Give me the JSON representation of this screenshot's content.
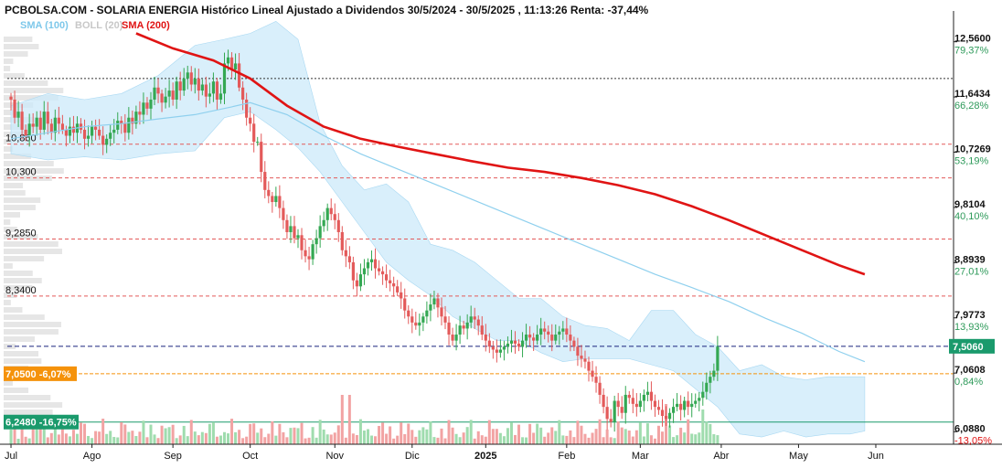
{
  "chart_data": {
    "type": "candlestick",
    "title": "PCBOLSA.COM - SOLARIA ENERGIA Histórico Lineal Ajustado a Dividendos 30/5/2024 - 30/5/2025 , 11:13:26 Renta: -37,44%",
    "legend": [
      {
        "label": "SMA (100)",
        "color": "#7ec8ea"
      },
      {
        "label": "BOLL (20)",
        "color": "#c8c8c8"
      },
      {
        "label": "SMA (200)",
        "color": "#e01414"
      }
    ],
    "colors": {
      "up": "#34a853",
      "down": "#e35a5a",
      "band": "#cce9fa",
      "sma100": "#8fd0ee",
      "sma200": "#e01414",
      "current": "#1a9a6c",
      "orange": "#f5920a",
      "green_line": "#1a9a6c"
    },
    "x_labels": [
      {
        "label": "Jul",
        "x": 0
      },
      {
        "label": "Ago",
        "x": 22
      },
      {
        "label": "Sep",
        "x": 44
      },
      {
        "label": "Oct",
        "x": 65
      },
      {
        "label": "Nov",
        "x": 88
      },
      {
        "label": "Dic",
        "x": 109
      },
      {
        "label": "2025",
        "x": 129,
        "bold": true
      },
      {
        "label": "Feb",
        "x": 151
      },
      {
        "label": "Mar",
        "x": 171
      },
      {
        "label": "Abr",
        "x": 193
      },
      {
        "label": "May",
        "x": 214
      },
      {
        "label": "Jun",
        "x": 235
      }
    ],
    "x_range": [
      -1,
      236
    ],
    "y_range": [
      5.88,
      12.98
    ],
    "y_ticks": [
      {
        "value": 12.56,
        "label": "12,5600",
        "pct": "79,37%"
      },
      {
        "value": 11.6434,
        "label": "11,6434",
        "pct": "66,28%"
      },
      {
        "value": 10.7269,
        "label": "10,7269",
        "pct": "53,19%"
      },
      {
        "value": 9.8104,
        "label": "9,8104",
        "pct": "40,10%"
      },
      {
        "value": 8.8939,
        "label": "8,8939",
        "pct": "27,01%"
      },
      {
        "value": 7.9773,
        "label": "7,9773",
        "pct": "13,93%"
      },
      {
        "value": 7.0608,
        "label": "7,0608",
        "pct": "0,84%"
      },
      {
        "value": 6.088,
        "label": "6,0880",
        "pct": "-13,05%"
      }
    ],
    "levels": [
      {
        "value": 10.86,
        "label": "10,860"
      },
      {
        "value": 10.3,
        "label": "10,300"
      },
      {
        "value": 9.285,
        "label": "9,2850"
      },
      {
        "value": 8.34,
        "label": "8,3400"
      }
    ],
    "dotted_level": 11.95,
    "current": {
      "value": 7.506,
      "label": "7,5060"
    },
    "tag_orange": {
      "value": 7.05,
      "label": "7,0500 -6,07%"
    },
    "tag_green": {
      "value": 6.248,
      "label": "6,2480 -16,75%"
    },
    "sma200": [
      [
        34,
        12.7
      ],
      [
        44,
        12.45
      ],
      [
        55,
        12.25
      ],
      [
        65,
        11.95
      ],
      [
        75,
        11.5
      ],
      [
        85,
        11.15
      ],
      [
        95,
        10.95
      ],
      [
        105,
        10.82
      ],
      [
        115,
        10.7
      ],
      [
        125,
        10.58
      ],
      [
        135,
        10.47
      ],
      [
        145,
        10.4
      ],
      [
        155,
        10.3
      ],
      [
        165,
        10.18
      ],
      [
        175,
        10.03
      ],
      [
        185,
        9.83
      ],
      [
        195,
        9.6
      ],
      [
        205,
        9.35
      ],
      [
        215,
        9.1
      ],
      [
        225,
        8.85
      ],
      [
        232,
        8.7
      ]
    ],
    "sma100": [
      [
        0,
        10.95
      ],
      [
        10,
        11.05
      ],
      [
        20,
        11.15
      ],
      [
        30,
        11.2
      ],
      [
        40,
        11.28
      ],
      [
        50,
        11.35
      ],
      [
        60,
        11.48
      ],
      [
        65,
        11.55
      ],
      [
        75,
        11.35
      ],
      [
        85,
        11.0
      ],
      [
        95,
        10.7
      ],
      [
        105,
        10.45
      ],
      [
        115,
        10.2
      ],
      [
        125,
        9.95
      ],
      [
        135,
        9.7
      ],
      [
        145,
        9.45
      ],
      [
        155,
        9.2
      ],
      [
        165,
        8.95
      ],
      [
        175,
        8.7
      ],
      [
        185,
        8.48
      ],
      [
        195,
        8.25
      ],
      [
        205,
        7.97
      ],
      [
        215,
        7.72
      ],
      [
        225,
        7.42
      ],
      [
        232,
        7.25
      ]
    ],
    "boll_upper": [
      [
        0,
        11.5
      ],
      [
        10,
        11.7
      ],
      [
        20,
        11.6
      ],
      [
        30,
        11.7
      ],
      [
        40,
        12.0
      ],
      [
        50,
        12.5
      ],
      [
        58,
        12.6
      ],
      [
        65,
        12.7
      ],
      [
        72,
        12.9
      ],
      [
        78,
        12.6
      ],
      [
        84,
        11.2
      ],
      [
        90,
        10.5
      ],
      [
        96,
        10.1
      ],
      [
        102,
        10.2
      ],
      [
        108,
        9.9
      ],
      [
        114,
        9.2
      ],
      [
        120,
        9.1
      ],
      [
        126,
        8.9
      ],
      [
        132,
        8.6
      ],
      [
        138,
        8.3
      ],
      [
        144,
        8.3
      ],
      [
        150,
        8.0
      ],
      [
        156,
        7.85
      ],
      [
        162,
        7.8
      ],
      [
        168,
        7.6
      ],
      [
        174,
        8.1
      ],
      [
        180,
        8.1
      ],
      [
        186,
        7.7
      ],
      [
        192,
        7.5
      ],
      [
        198,
        7.1
      ],
      [
        204,
        7.2
      ],
      [
        210,
        7.0
      ],
      [
        216,
        6.95
      ],
      [
        222,
        7.0
      ],
      [
        228,
        7.0
      ],
      [
        232,
        7.0
      ]
    ],
    "boll_lower": [
      [
        0,
        10.7
      ],
      [
        10,
        10.6
      ],
      [
        20,
        10.65
      ],
      [
        30,
        10.6
      ],
      [
        40,
        10.7
      ],
      [
        50,
        10.75
      ],
      [
        58,
        11.3
      ],
      [
        65,
        11.4
      ],
      [
        72,
        11.1
      ],
      [
        78,
        10.8
      ],
      [
        84,
        10.4
      ],
      [
        90,
        9.9
      ],
      [
        96,
        9.4
      ],
      [
        102,
        8.9
      ],
      [
        108,
        8.6
      ],
      [
        114,
        8.35
      ],
      [
        120,
        8.0
      ],
      [
        126,
        7.8
      ],
      [
        132,
        7.6
      ],
      [
        138,
        7.6
      ],
      [
        144,
        7.4
      ],
      [
        150,
        7.25
      ],
      [
        156,
        7.3
      ],
      [
        162,
        7.3
      ],
      [
        168,
        7.3
      ],
      [
        174,
        7.2
      ],
      [
        180,
        7.1
      ],
      [
        186,
        6.8
      ],
      [
        192,
        6.5
      ],
      [
        198,
        6.05
      ],
      [
        204,
        6.0
      ],
      [
        210,
        6.1
      ],
      [
        216,
        6.0
      ],
      [
        222,
        6.05
      ],
      [
        228,
        6.05
      ],
      [
        232,
        6.1
      ]
    ],
    "closes": [
      11.6,
      11.3,
      11.4,
      11.1,
      11.0,
      11.2,
      11.15,
      11.3,
      11.1,
      11.4,
      11.2,
      11.05,
      11.3,
      11.2,
      11.1,
      11.0,
      11.15,
      11.05,
      11.2,
      11.1,
      10.95,
      11.0,
      11.15,
      11.1,
      11.0,
      10.85,
      10.95,
      11.05,
      11.1,
      11.25,
      11.2,
      11.05,
      11.3,
      11.2,
      11.4,
      11.35,
      11.55,
      11.45,
      11.6,
      11.8,
      11.7,
      11.55,
      11.65,
      11.75,
      11.6,
      11.9,
      11.75,
      11.95,
      12.05,
      11.85,
      11.95,
      11.75,
      11.85,
      11.65,
      11.7,
      11.9,
      11.6,
      11.7,
      12.2,
      12.3,
      12.1,
      12.2,
      11.8,
      11.6,
      11.3,
      11.2,
      10.9,
      10.9,
      10.4,
      10.1,
      10.0,
      9.9,
      10.0,
      9.8,
      9.6,
      9.4,
      9.5,
      9.3,
      9.35,
      9.1,
      9.0,
      8.95,
      9.2,
      9.3,
      9.5,
      9.6,
      9.8,
      9.7,
      9.6,
      9.4,
      9.1,
      9.0,
      8.9,
      8.6,
      8.5,
      8.7,
      8.8,
      8.9,
      8.95,
      8.8,
      8.75,
      8.7,
      8.6,
      8.55,
      8.5,
      8.4,
      8.3,
      8.1,
      8.0,
      7.9,
      7.85,
      7.9,
      8.0,
      8.1,
      8.2,
      8.3,
      8.15,
      8.0,
      7.9,
      7.7,
      7.6,
      7.7,
      7.85,
      7.8,
      7.9,
      8.0,
      7.95,
      7.85,
      7.7,
      7.6,
      7.5,
      7.45,
      7.4,
      7.45,
      7.5,
      7.55,
      7.6,
      7.55,
      7.5,
      7.6,
      7.7,
      7.65,
      7.6,
      7.7,
      7.8,
      7.75,
      7.7,
      7.6,
      7.7,
      7.75,
      7.8,
      7.7,
      7.6,
      7.5,
      7.35,
      7.3,
      7.25,
      7.1,
      7.0,
      6.9,
      6.7,
      6.5,
      6.3,
      6.25,
      6.6,
      6.5,
      6.4,
      6.7,
      6.65,
      6.55,
      6.5,
      6.6,
      6.7,
      6.75,
      6.6,
      6.5,
      6.45,
      6.35,
      6.3,
      6.4,
      6.5,
      6.55,
      6.45,
      6.6,
      6.5,
      6.55,
      6.6,
      6.65,
      6.75,
      6.9,
      7.0,
      7.1,
      7.5
    ]
  }
}
